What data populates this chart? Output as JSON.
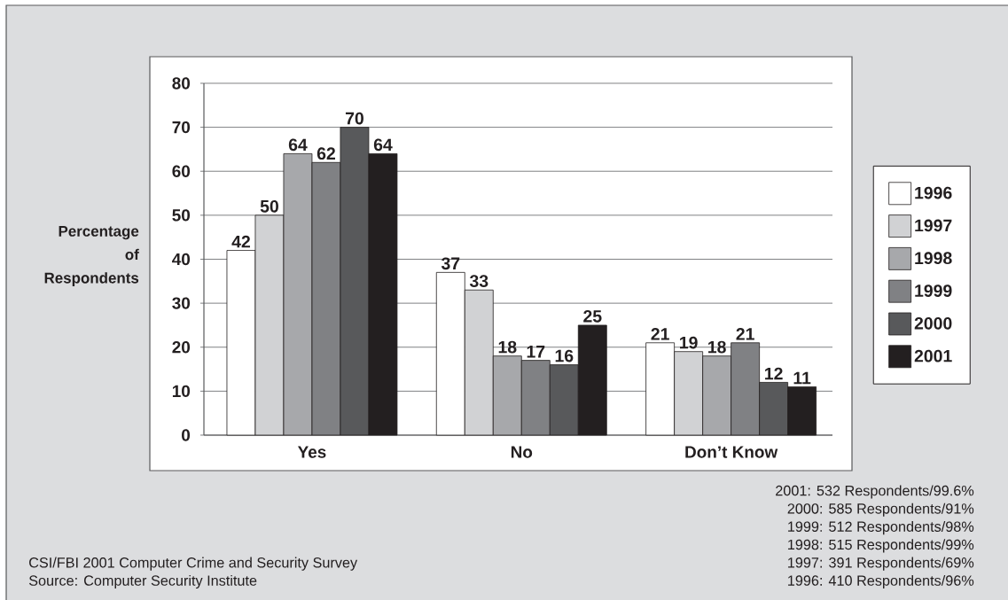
{
  "chart_data": {
    "type": "bar",
    "categories": [
      "Yes",
      "No",
      "Don’t Know"
    ],
    "ylabel": "Percentage of Respondents",
    "series": [
      {
        "name": "1996",
        "color": "#ffffff",
        "values": [
          42,
          37,
          21
        ]
      },
      {
        "name": "1997",
        "color": "#d1d2d4",
        "values": [
          50,
          33,
          19
        ]
      },
      {
        "name": "1998",
        "color": "#a7a8ab",
        "values": [
          64,
          18,
          18
        ]
      },
      {
        "name": "1999",
        "color": "#808184",
        "values": [
          62,
          17,
          21
        ]
      },
      {
        "name": "2000",
        "color": "#58595b",
        "values": [
          70,
          16,
          12
        ]
      },
      {
        "name": "2001",
        "color": "#231f20",
        "values": [
          64,
          25,
          11
        ]
      }
    ],
    "ylim": [
      0,
      80
    ],
    "yticks": [
      0,
      10,
      20,
      30,
      40,
      50,
      60,
      70,
      80
    ],
    "grid": "y",
    "legend": "right",
    "data_labels": true,
    "annotations": [
      "2001: 532 Respondents/99.6%",
      "2000: 585 Respondents/91%",
      "1999: 512 Respondents/98%",
      "1998: 515 Respondents/99%",
      "1997: 391 Respondents/69%",
      "1996: 410 Respondents/96%",
      "CSI/FBI 2001 Computer Crime and Security Survey",
      "Source: Computer Security Institute"
    ]
  }
}
